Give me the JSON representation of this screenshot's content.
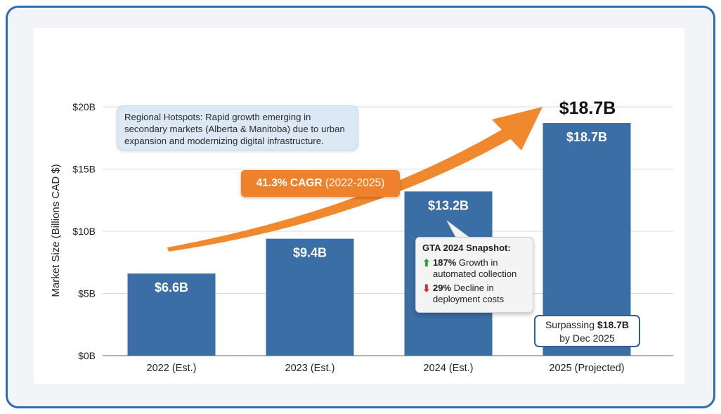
{
  "chart_data": {
    "type": "bar",
    "categories": [
      "2022 (Est.)",
      "2023 (Est.)",
      "2024 (Est.)",
      "2025 (Projected)"
    ],
    "values": [
      6.6,
      9.4,
      13.2,
      18.7
    ],
    "data_labels": [
      "$6.6B",
      "$9.4B",
      "$13.2B",
      "$18.7B"
    ],
    "ylabel": "Market Size (Billions CAD $)",
    "ylim": [
      0,
      20
    ],
    "yticks": [
      0,
      5,
      10,
      15,
      20
    ],
    "ytick_labels": [
      "$0B",
      "$5B",
      "$10B",
      "$15B",
      "$20B"
    ],
    "grid": true,
    "bar_color": "#3a6ea5",
    "annotations": {
      "top_value": "$18.7B",
      "cagr": {
        "value": "41.3% CAGR",
        "period": "(2022-2025)",
        "color": "#f0812c"
      },
      "hotspots": "Regional Hotspots: Rapid growth emerging in secondary markets (Alberta & Manitoba) due to urban expansion and modernizing digital infrastructure.",
      "gta": {
        "title": "GTA 2024 Snapshot:",
        "growth_value": "187%",
        "growth_text": "Growth in automated collection",
        "decline_value": "29%",
        "decline_text": "Decline in deployment costs",
        "up_icon": "arrow-up-icon",
        "down_icon": "arrow-down-icon"
      },
      "surpass": {
        "prefix": "Surpassing",
        "value": "$18.7B",
        "suffix": "by Dec 2025"
      }
    }
  }
}
